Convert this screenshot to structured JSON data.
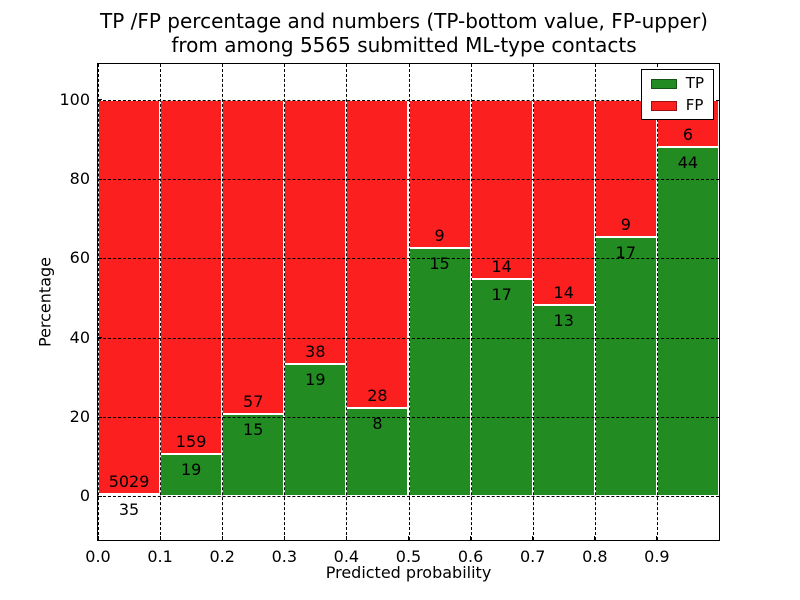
{
  "title": {
    "line1": "TP /FP percentage and numbers (TP-bottom value, FP-upper)",
    "line2": "from among 5565 submitted ML-type contacts"
  },
  "chart_data": {
    "type": "bar",
    "stacked": true,
    "title": "TP /FP percentage and numbers (TP-bottom value, FP-upper) from among 5565 submitted ML-type contacts",
    "xlabel": "Predicted probability",
    "ylabel": "Percentage",
    "bin_starts": [
      0.0,
      0.1,
      0.2,
      0.3,
      0.4,
      0.5,
      0.6,
      0.7,
      0.8,
      0.9
    ],
    "bin_width": 0.1,
    "series": [
      {
        "name": "TP",
        "color": "#228b22",
        "counts": [
          35,
          19,
          15,
          19,
          8,
          15,
          17,
          13,
          17,
          44
        ]
      },
      {
        "name": "FP",
        "color": "#fb1f1f",
        "counts": [
          5029,
          159,
          57,
          38,
          28,
          9,
          14,
          14,
          9,
          6
        ]
      }
    ],
    "tp_percent": [
      0.69,
      10.67,
      20.83,
      33.33,
      22.22,
      62.5,
      54.84,
      48.15,
      65.38,
      88.0
    ],
    "note": "bars show percentage split per bin, TP on bottom (green), FP on top (red), stacked to 100%; count labels printed near the TP/FP boundary",
    "x_ticks": [
      "0.0",
      "0.1",
      "0.2",
      "0.3",
      "0.4",
      "0.5",
      "0.6",
      "0.7",
      "0.8",
      "0.9"
    ],
    "x_tick_values": [
      0.0,
      0.1,
      0.2,
      0.3,
      0.4,
      0.5,
      0.6,
      0.7,
      0.8,
      0.9
    ],
    "y_ticks": [
      0,
      20,
      40,
      60,
      80,
      100
    ],
    "xlim": [
      0.0,
      1.0
    ],
    "ylim": [
      -11,
      109
    ],
    "grid": {
      "style": "dotted",
      "color": "#000000",
      "on": true
    },
    "legend": {
      "position": "upper right",
      "entries": [
        {
          "label": "TP",
          "color": "#228b22"
        },
        {
          "label": "FP",
          "color": "#fb1f1f"
        }
      ]
    }
  }
}
